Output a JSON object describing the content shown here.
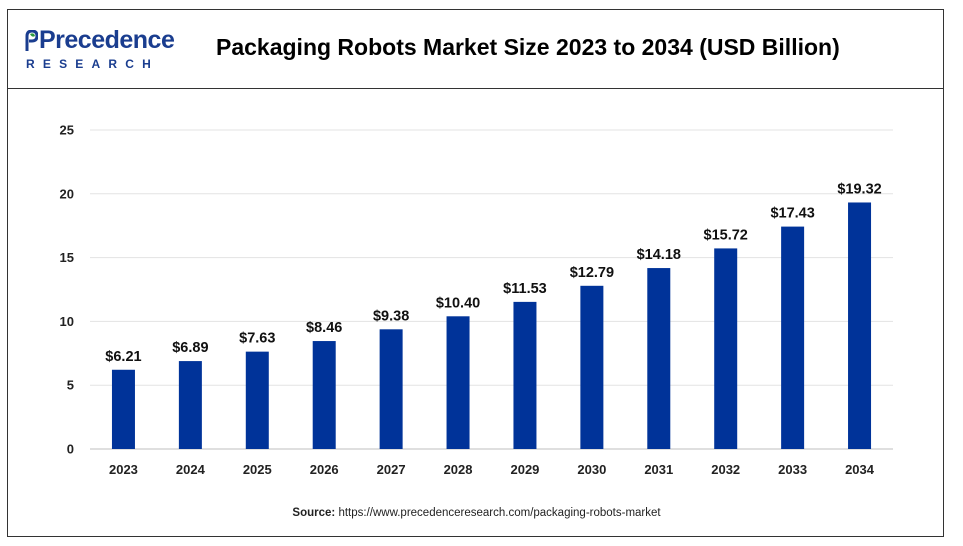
{
  "brand": {
    "name": "Precedence",
    "subtitle": "RESEARCH"
  },
  "chart_data": {
    "type": "bar",
    "title": "Packaging Robots Market Size 2023 to 2034 (USD Billion)",
    "categories": [
      "2023",
      "2024",
      "2025",
      "2026",
      "2027",
      "2028",
      "2029",
      "2030",
      "2031",
      "2032",
      "2033",
      "2034"
    ],
    "values": [
      6.21,
      6.89,
      7.63,
      8.46,
      9.38,
      10.4,
      11.53,
      12.79,
      14.18,
      15.72,
      17.43,
      19.32
    ],
    "data_labels": [
      "$6.21",
      "$6.89",
      "$7.63",
      "$8.46",
      "$9.38",
      "$10.40",
      "$11.53",
      "$12.79",
      "$14.18",
      "$15.72",
      "$17.43",
      "$19.32"
    ],
    "yticks": [
      "0",
      "5",
      "10",
      "15",
      "20",
      "25"
    ],
    "ylim": [
      0,
      25
    ],
    "xlabel": "",
    "ylabel": "",
    "grid": true,
    "bar_color": "#003399",
    "grid_color": "#e3e3e3"
  },
  "source": {
    "label": "Source:",
    "url": "https://www.precedenceresearch.com/packaging-robots-market"
  }
}
